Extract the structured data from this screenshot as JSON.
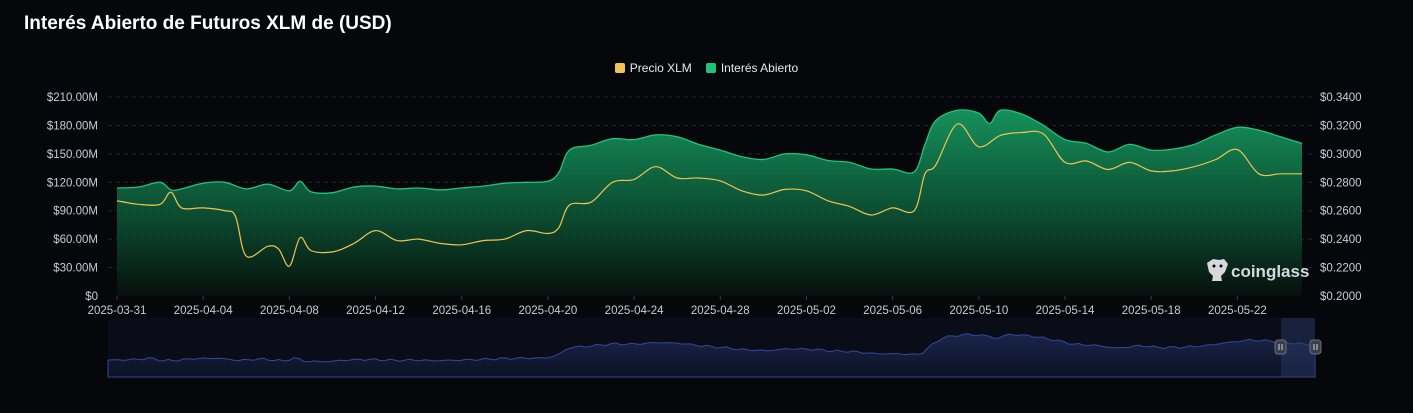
{
  "title": "Interés Abierto de Futuros XLM de (USD)",
  "legend": [
    {
      "label": "Precio XLM",
      "color": "#f0c350"
    },
    {
      "label": "Interés Abierto",
      "color": "#1fc47c"
    }
  ],
  "watermark": "coinglass",
  "colors": {
    "background": "#06070b",
    "oi_fill": "#1a9a63",
    "oi_line": "#22c27e",
    "price_line": "#f0c350",
    "navigator": "#2b3a6b"
  },
  "chart_data": {
    "type": "area",
    "x_range": [
      "2025-03-31",
      "2025-05-25"
    ],
    "x_tick_labels": [
      "2025-03-31",
      "2025-04-04",
      "2025-04-08",
      "2025-04-12",
      "2025-04-16",
      "2025-04-20",
      "2025-04-24",
      "2025-04-28",
      "2025-05-02",
      "2025-05-06",
      "2025-05-10",
      "2025-05-14",
      "2025-05-18",
      "2025-05-22"
    ],
    "y_left": {
      "ticks": [
        "$0",
        "$30.00M",
        "$60.00M",
        "$90.00M",
        "$120.00M",
        "$150.00M",
        "$180.00M",
        "$210.00M"
      ],
      "range": [
        0,
        210
      ],
      "unit": "M USD"
    },
    "y_right": {
      "ticks": [
        "$0.2000",
        "$0.2200",
        "$0.2400",
        "$0.2600",
        "$0.2800",
        "$0.3000",
        "$0.3200",
        "$0.3400"
      ],
      "range": [
        0.2,
        0.34
      ]
    },
    "grid": true,
    "legend_position": "top-center",
    "series": [
      {
        "name": "Interés Abierto",
        "axis": "left",
        "points": [
          [
            "2025-03-31",
            114
          ],
          [
            "2025-04-01",
            115
          ],
          [
            "2025-04-02",
            120
          ],
          [
            "2025-04-02T12",
            112
          ],
          [
            "2025-04-03",
            113
          ],
          [
            "2025-04-04",
            119
          ],
          [
            "2025-04-05",
            120
          ],
          [
            "2025-04-06",
            113
          ],
          [
            "2025-04-07",
            118
          ],
          [
            "2025-04-08",
            111
          ],
          [
            "2025-04-08T12",
            121
          ],
          [
            "2025-04-09",
            110
          ],
          [
            "2025-04-10",
            109
          ],
          [
            "2025-04-11",
            115
          ],
          [
            "2025-04-12",
            116
          ],
          [
            "2025-04-13",
            113
          ],
          [
            "2025-04-14",
            114
          ],
          [
            "2025-04-15",
            112
          ],
          [
            "2025-04-16",
            114
          ],
          [
            "2025-04-17",
            116
          ],
          [
            "2025-04-18",
            119
          ],
          [
            "2025-04-19",
            120
          ],
          [
            "2025-04-20",
            121
          ],
          [
            "2025-04-20T12",
            130
          ],
          [
            "2025-04-21",
            154
          ],
          [
            "2025-04-22",
            159
          ],
          [
            "2025-04-23",
            166
          ],
          [
            "2025-04-24",
            165
          ],
          [
            "2025-04-25",
            170
          ],
          [
            "2025-04-26",
            168
          ],
          [
            "2025-04-27",
            160
          ],
          [
            "2025-04-28",
            154
          ],
          [
            "2025-04-29",
            147
          ],
          [
            "2025-04-30",
            144
          ],
          [
            "2025-05-01",
            150
          ],
          [
            "2025-05-02",
            149
          ],
          [
            "2025-05-03",
            143
          ],
          [
            "2025-05-04",
            141
          ],
          [
            "2025-05-05",
            134
          ],
          [
            "2025-05-06",
            134
          ],
          [
            "2025-05-07",
            131
          ],
          [
            "2025-05-07T12",
            160
          ],
          [
            "2025-05-08",
            185
          ],
          [
            "2025-05-09",
            196
          ],
          [
            "2025-05-10",
            193
          ],
          [
            "2025-05-10T12",
            182
          ],
          [
            "2025-05-11",
            196
          ],
          [
            "2025-05-12",
            192
          ],
          [
            "2025-05-13",
            180
          ],
          [
            "2025-05-14",
            165
          ],
          [
            "2025-05-15",
            161
          ],
          [
            "2025-05-16",
            152
          ],
          [
            "2025-05-17",
            160
          ],
          [
            "2025-05-18",
            154
          ],
          [
            "2025-05-19",
            155
          ],
          [
            "2025-05-20",
            160
          ],
          [
            "2025-05-21",
            170
          ],
          [
            "2025-05-22",
            178
          ],
          [
            "2025-05-23",
            175
          ],
          [
            "2025-05-24",
            168
          ],
          [
            "2025-05-25",
            161
          ]
        ]
      },
      {
        "name": "Precio XLM",
        "axis": "right",
        "points": [
          [
            "2025-03-31",
            0.267
          ],
          [
            "2025-04-01",
            0.2645
          ],
          [
            "2025-04-02",
            0.2645
          ],
          [
            "2025-04-02T12",
            0.273
          ],
          [
            "2025-04-03",
            0.262
          ],
          [
            "2025-04-04",
            0.262
          ],
          [
            "2025-04-05",
            0.26
          ],
          [
            "2025-04-05T12",
            0.256
          ],
          [
            "2025-04-06",
            0.228
          ],
          [
            "2025-04-07",
            0.235
          ],
          [
            "2025-04-07T12",
            0.233
          ],
          [
            "2025-04-08",
            0.221
          ],
          [
            "2025-04-08T12",
            0.241
          ],
          [
            "2025-04-09",
            0.232
          ],
          [
            "2025-04-10",
            0.231
          ],
          [
            "2025-04-11",
            0.237
          ],
          [
            "2025-04-12",
            0.246
          ],
          [
            "2025-04-13",
            0.239
          ],
          [
            "2025-04-14",
            0.24
          ],
          [
            "2025-04-15",
            0.237
          ],
          [
            "2025-04-16",
            0.236
          ],
          [
            "2025-04-17",
            0.239
          ],
          [
            "2025-04-18",
            0.24
          ],
          [
            "2025-04-19",
            0.246
          ],
          [
            "2025-04-20",
            0.244
          ],
          [
            "2025-04-20T12",
            0.248
          ],
          [
            "2025-04-21",
            0.264
          ],
          [
            "2025-04-22",
            0.266
          ],
          [
            "2025-04-23",
            0.28
          ],
          [
            "2025-04-24",
            0.282
          ],
          [
            "2025-04-25",
            0.291
          ],
          [
            "2025-04-26",
            0.283
          ],
          [
            "2025-04-27",
            0.283
          ],
          [
            "2025-04-28",
            0.281
          ],
          [
            "2025-04-29",
            0.274
          ],
          [
            "2025-04-30",
            0.271
          ],
          [
            "2025-05-01",
            0.275
          ],
          [
            "2025-05-02",
            0.274
          ],
          [
            "2025-05-03",
            0.267
          ],
          [
            "2025-05-04",
            0.263
          ],
          [
            "2025-05-05",
            0.257
          ],
          [
            "2025-05-06",
            0.262
          ],
          [
            "2025-05-07",
            0.26
          ],
          [
            "2025-05-07T12",
            0.286
          ],
          [
            "2025-05-08",
            0.292
          ],
          [
            "2025-05-09",
            0.321
          ],
          [
            "2025-05-10",
            0.305
          ],
          [
            "2025-05-11",
            0.313
          ],
          [
            "2025-05-12",
            0.315
          ],
          [
            "2025-05-13",
            0.314
          ],
          [
            "2025-05-14",
            0.294
          ],
          [
            "2025-05-15",
            0.295
          ],
          [
            "2025-05-16",
            0.289
          ],
          [
            "2025-05-17",
            0.294
          ],
          [
            "2025-05-18",
            0.288
          ],
          [
            "2025-05-19",
            0.288
          ],
          [
            "2025-05-20",
            0.291
          ],
          [
            "2025-05-21",
            0.296
          ],
          [
            "2025-05-22",
            0.303
          ],
          [
            "2025-05-23",
            0.286
          ],
          [
            "2025-05-24",
            0.286
          ],
          [
            "2025-05-25",
            0.286
          ]
        ]
      }
    ]
  }
}
